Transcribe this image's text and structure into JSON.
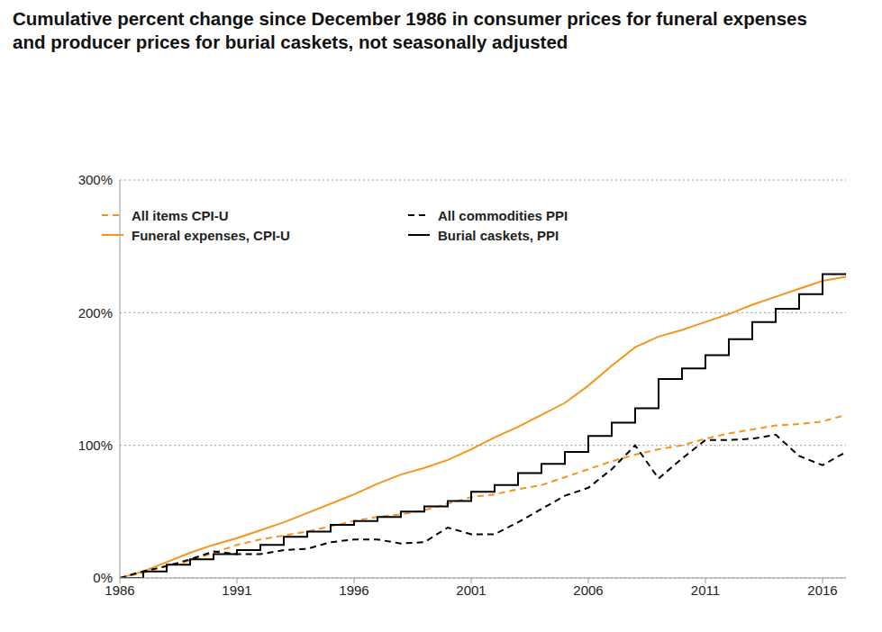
{
  "chart_data": {
    "type": "line",
    "title": "Cumulative percent change since December 1986 in consumer prices for funeral expenses and producer prices for burial caskets, not seasonally adjusted",
    "x": [
      1986,
      1987,
      1988,
      1989,
      1990,
      1991,
      1992,
      1993,
      1994,
      1995,
      1996,
      1997,
      1998,
      1999,
      2000,
      2001,
      2002,
      2003,
      2004,
      2005,
      2006,
      2007,
      2008,
      2009,
      2010,
      2011,
      2012,
      2013,
      2014,
      2015,
      2016,
      2017
    ],
    "xlim": [
      1986,
      2017
    ],
    "xticks": [
      1986,
      1991,
      1996,
      2001,
      2006,
      2011,
      2016
    ],
    "ylim": [
      0,
      300
    ],
    "yticks": [
      {
        "value": 0,
        "label": "0%"
      },
      {
        "value": 100,
        "label": "100%"
      },
      {
        "value": 200,
        "label": "200%"
      },
      {
        "value": 300,
        "label": "300%"
      }
    ],
    "grid": true,
    "legend": "top",
    "series": [
      {
        "name": "All items CPI-U",
        "color": "#f7941d",
        "line_style": "dashed",
        "type": "line",
        "values": [
          0,
          4,
          9,
          13,
          19,
          25,
          29,
          32,
          35,
          39,
          43,
          46,
          48,
          51,
          56,
          61,
          63,
          67,
          70,
          76,
          82,
          88,
          93,
          97,
          100,
          105,
          109,
          112,
          115,
          116,
          118,
          123
        ]
      },
      {
        "name": "Funeral expenses, CPI-U",
        "color": "#f7941d",
        "line_style": "solid",
        "type": "line",
        "values": [
          0,
          5,
          12,
          19,
          25,
          30,
          36,
          42,
          49,
          56,
          63,
          71,
          78,
          83,
          89,
          97,
          106,
          114,
          123,
          132,
          145,
          160,
          174,
          182,
          187,
          193,
          199,
          206,
          212,
          218,
          224,
          227
        ]
      },
      {
        "name": "All commodities PPI",
        "color": "#000000",
        "line_style": "dashed",
        "type": "line",
        "values": [
          0,
          5,
          9,
          14,
          20,
          18,
          18,
          21,
          22,
          27,
          29,
          29,
          26,
          27,
          38,
          33,
          33,
          42,
          52,
          62,
          68,
          82,
          100,
          75,
          90,
          104,
          104,
          105,
          108,
          92,
          85,
          95
        ]
      },
      {
        "name": "Burial caskets, PPI",
        "color": "#000000",
        "line_style": "solid",
        "type": "step",
        "values": [
          0,
          5,
          10,
          14,
          18,
          21,
          25,
          31,
          35,
          40,
          43,
          46,
          50,
          54,
          58,
          65,
          70,
          79,
          86,
          95,
          107,
          117,
          128,
          150,
          158,
          168,
          180,
          193,
          203,
          214,
          229,
          230
        ]
      }
    ]
  }
}
